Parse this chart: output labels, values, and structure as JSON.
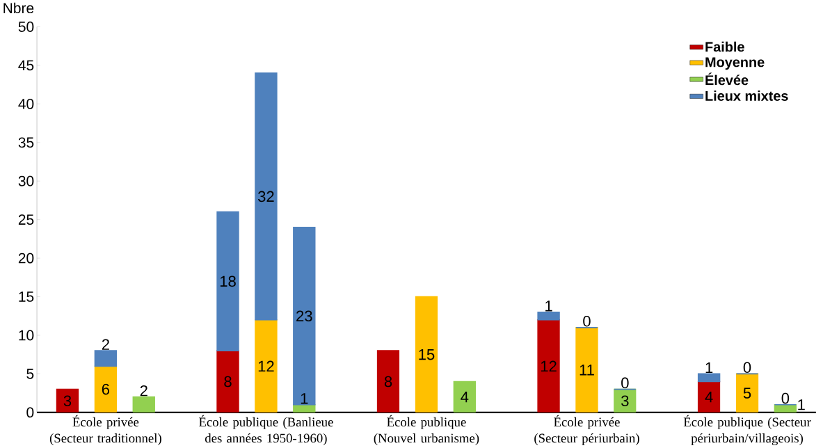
{
  "chart_data": {
    "type": "bar",
    "stacked": true,
    "ylabel": "Nbre",
    "categories": [
      null,
      "École privée (Secteur traditionnel)",
      null,
      null,
      "École publique (Banlieue des années 1950-1960)",
      null,
      null,
      "École publique (Nouvel urbanisme)",
      null,
      null,
      "École privée (Secteur périurbain)",
      null,
      null,
      "École publique (Secteur périurbain/villageois)",
      null
    ],
    "series": [
      {
        "name": "Faible",
        "color": "#c00000",
        "values": [
          3,
          null,
          null,
          8,
          null,
          null,
          8,
          null,
          null,
          12,
          null,
          null,
          4,
          null,
          null
        ]
      },
      {
        "name": "Moyenne",
        "color": "#ffc000",
        "values": [
          null,
          6,
          null,
          null,
          12,
          null,
          null,
          15,
          null,
          null,
          11,
          null,
          null,
          5,
          null
        ]
      },
      {
        "name": "Élevée",
        "color": "#92d050",
        "values": [
          null,
          null,
          2,
          null,
          null,
          1,
          null,
          null,
          4,
          null,
          null,
          3,
          null,
          null,
          1
        ]
      },
      {
        "name": "Lieux mixtes",
        "color": "#4f81bd",
        "values": [
          null,
          2,
          null,
          18,
          32,
          23,
          null,
          null,
          null,
          1,
          0,
          0,
          1,
          0,
          0
        ]
      }
    ],
    "ylim": [
      0,
      50
    ],
    "yticks": [
      0,
      5,
      10,
      15,
      20,
      25,
      30,
      35,
      40,
      45,
      50
    ],
    "data_labels": true,
    "legend": "top right",
    "grid": false
  }
}
